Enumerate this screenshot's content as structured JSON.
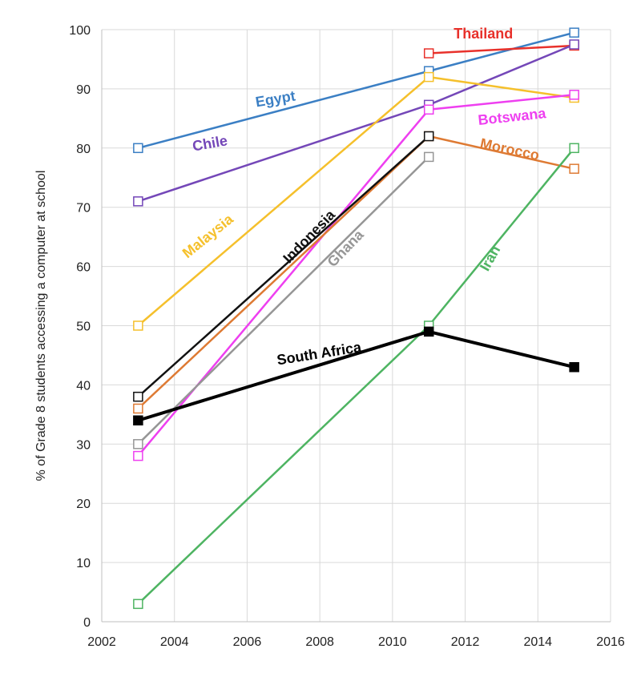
{
  "chart_data": {
    "type": "line",
    "title": "",
    "xlabel": "",
    "ylabel": "% of Grade 8 students accessing a computer at school",
    "xlim": [
      2002,
      2016
    ],
    "ylim": [
      0,
      100
    ],
    "x_ticks": [
      2002,
      2004,
      2006,
      2008,
      2010,
      2012,
      2014,
      2016
    ],
    "y_ticks": [
      0,
      10,
      20,
      30,
      40,
      50,
      60,
      70,
      80,
      90,
      100
    ],
    "grid": "vertical and horizontal",
    "legend": "inline labels",
    "series": [
      {
        "name": "Egypt",
        "color": "#3b7fc4",
        "marker": "hollow-square",
        "x": [
          2003,
          2011,
          2015
        ],
        "values": [
          80,
          93,
          99.5
        ]
      },
      {
        "name": "Thailand",
        "color": "#e8312b",
        "marker": "hollow-square",
        "x": [
          2011,
          2015
        ],
        "values": [
          96,
          97.3
        ]
      },
      {
        "name": "Chile",
        "color": "#7447b8",
        "marker": "hollow-square",
        "x": [
          2003,
          2011,
          2015
        ],
        "values": [
          71,
          87.3,
          97.5
        ]
      },
      {
        "name": "Malaysia",
        "color": "#f5c02c",
        "marker": "hollow-square",
        "x": [
          2003,
          2011,
          2015
        ],
        "values": [
          50,
          92,
          88.5
        ]
      },
      {
        "name": "Botswana",
        "color": "#ee3ff0",
        "marker": "hollow-square",
        "x": [
          2003,
          2011,
          2015
        ],
        "values": [
          28,
          86.5,
          89
        ]
      },
      {
        "name": "Morocco",
        "color": "#de7a33",
        "marker": "hollow-square",
        "x": [
          2003,
          2011,
          2015
        ],
        "values": [
          36,
          82,
          76.5
        ]
      },
      {
        "name": "Indonesia",
        "color": "#111111",
        "marker": "hollow-square",
        "x": [
          2003,
          2011
        ],
        "values": [
          38,
          82
        ]
      },
      {
        "name": "Ghana",
        "color": "#969696",
        "marker": "hollow-square",
        "x": [
          2003,
          2011
        ],
        "values": [
          30,
          78.5
        ]
      },
      {
        "name": "Iran",
        "color": "#4eb462",
        "marker": "hollow-square",
        "x": [
          2003,
          2011,
          2015
        ],
        "values": [
          3,
          50,
          80
        ]
      },
      {
        "name": "South Africa",
        "color": "#000000",
        "marker": "filled-square",
        "x": [
          2003,
          2011,
          2015
        ],
        "values": [
          34,
          49,
          43
        ]
      }
    ]
  }
}
